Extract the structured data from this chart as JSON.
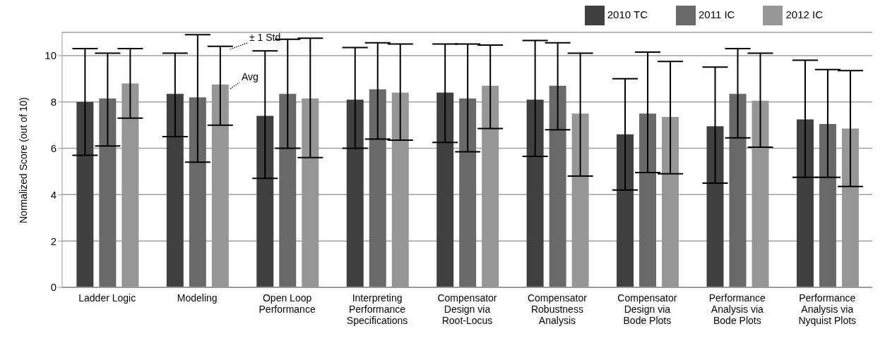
{
  "chart_data": {
    "type": "bar",
    "ylabel": "Normalized Score (out of 10)",
    "categories": [
      "Ladder Logic",
      "Modeling",
      "Open Loop Performance",
      "Interpreting Performance Specifications",
      "Compensator Design via Root-Locus",
      "Compensator Robustness Analysis",
      "Compensator Design via Bode Plots",
      "Performance Analysis via Bode Plots",
      "Performance Analysis via Nyquist Plots"
    ],
    "series": [
      {
        "name": "2010 TC",
        "color": "#404040",
        "values": [
          8.0,
          8.35,
          7.4,
          8.1,
          8.4,
          8.1,
          6.6,
          6.95,
          7.25
        ],
        "errors": [
          [
            5.7,
            10.3
          ],
          [
            6.5,
            10.1
          ],
          [
            4.7,
            10.2
          ],
          [
            6.0,
            10.35
          ],
          [
            6.25,
            10.5
          ],
          [
            5.65,
            10.65
          ],
          [
            4.2,
            9.0
          ],
          [
            4.5,
            9.5
          ],
          [
            4.75,
            9.8
          ]
        ]
      },
      {
        "name": "2011 IC",
        "color": "#696969",
        "values": [
          8.15,
          8.2,
          8.35,
          8.55,
          8.15,
          8.7,
          7.5,
          8.35,
          7.05
        ],
        "errors": [
          [
            6.1,
            10.1
          ],
          [
            5.4,
            10.9
          ],
          [
            6.0,
            10.7
          ],
          [
            6.4,
            10.55
          ],
          [
            5.85,
            10.5
          ],
          [
            6.8,
            10.55
          ],
          [
            4.95,
            10.15
          ],
          [
            6.45,
            10.3
          ],
          [
            4.75,
            9.4
          ]
        ]
      },
      {
        "name": "2012 IC",
        "color": "#969696",
        "values": [
          8.8,
          8.75,
          8.15,
          8.4,
          8.7,
          7.5,
          7.35,
          8.05,
          6.85
        ],
        "errors": [
          [
            7.3,
            10.3
          ],
          [
            7.0,
            10.4
          ],
          [
            5.6,
            10.75
          ],
          [
            6.35,
            10.5
          ],
          [
            6.85,
            10.45
          ],
          [
            4.8,
            10.1
          ],
          [
            4.9,
            9.75
          ],
          [
            6.05,
            10.1
          ],
          [
            4.35,
            9.35
          ]
        ]
      }
    ],
    "annotations": [
      "± 1 Std",
      "Avg"
    ],
    "ylim": [
      0,
      11
    ],
    "yticks": [
      0,
      2,
      4,
      6,
      8,
      10
    ],
    "grid": "y",
    "legend": "top right"
  }
}
